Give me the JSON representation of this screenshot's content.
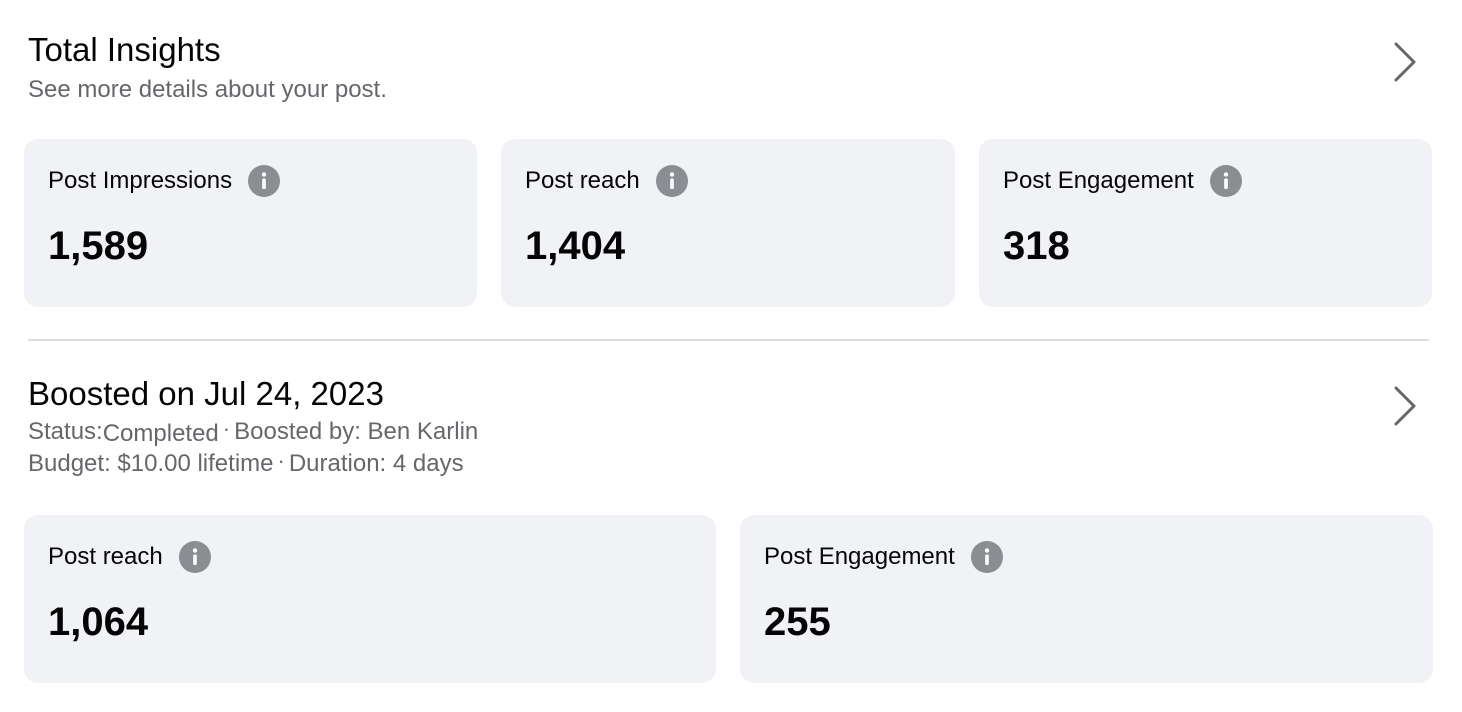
{
  "total_insights": {
    "title": "Total Insights",
    "subtitle": "See more details about your post.",
    "chevron_icon": "chevron-right-icon",
    "cards": [
      {
        "label": "Post Impressions",
        "value": "1,589",
        "icon": "info-icon"
      },
      {
        "label": "Post reach",
        "value": "1,404",
        "icon": "info-icon"
      },
      {
        "label": "Post Engagement",
        "value": "318",
        "icon": "info-icon"
      }
    ]
  },
  "boost": {
    "title": "Boosted on Jul 24, 2023",
    "status_label": "Status:",
    "status_value": "Completed",
    "separator": "·",
    "boosted_by": "Boosted by: Ben Karlin",
    "budget": "Budget: $10.00 lifetime",
    "duration": "Duration: 4 days",
    "chevron_icon": "chevron-right-icon",
    "cards": [
      {
        "label": "Post reach",
        "value": "1,064",
        "icon": "info-icon"
      },
      {
        "label": "Post Engagement",
        "value": "255",
        "icon": "info-icon"
      }
    ]
  },
  "colors": {
    "card_background": "#f0f2f5",
    "secondary_text": "#65676b",
    "icon_gray": "#8a8d91",
    "divider": "#dddfe2"
  }
}
